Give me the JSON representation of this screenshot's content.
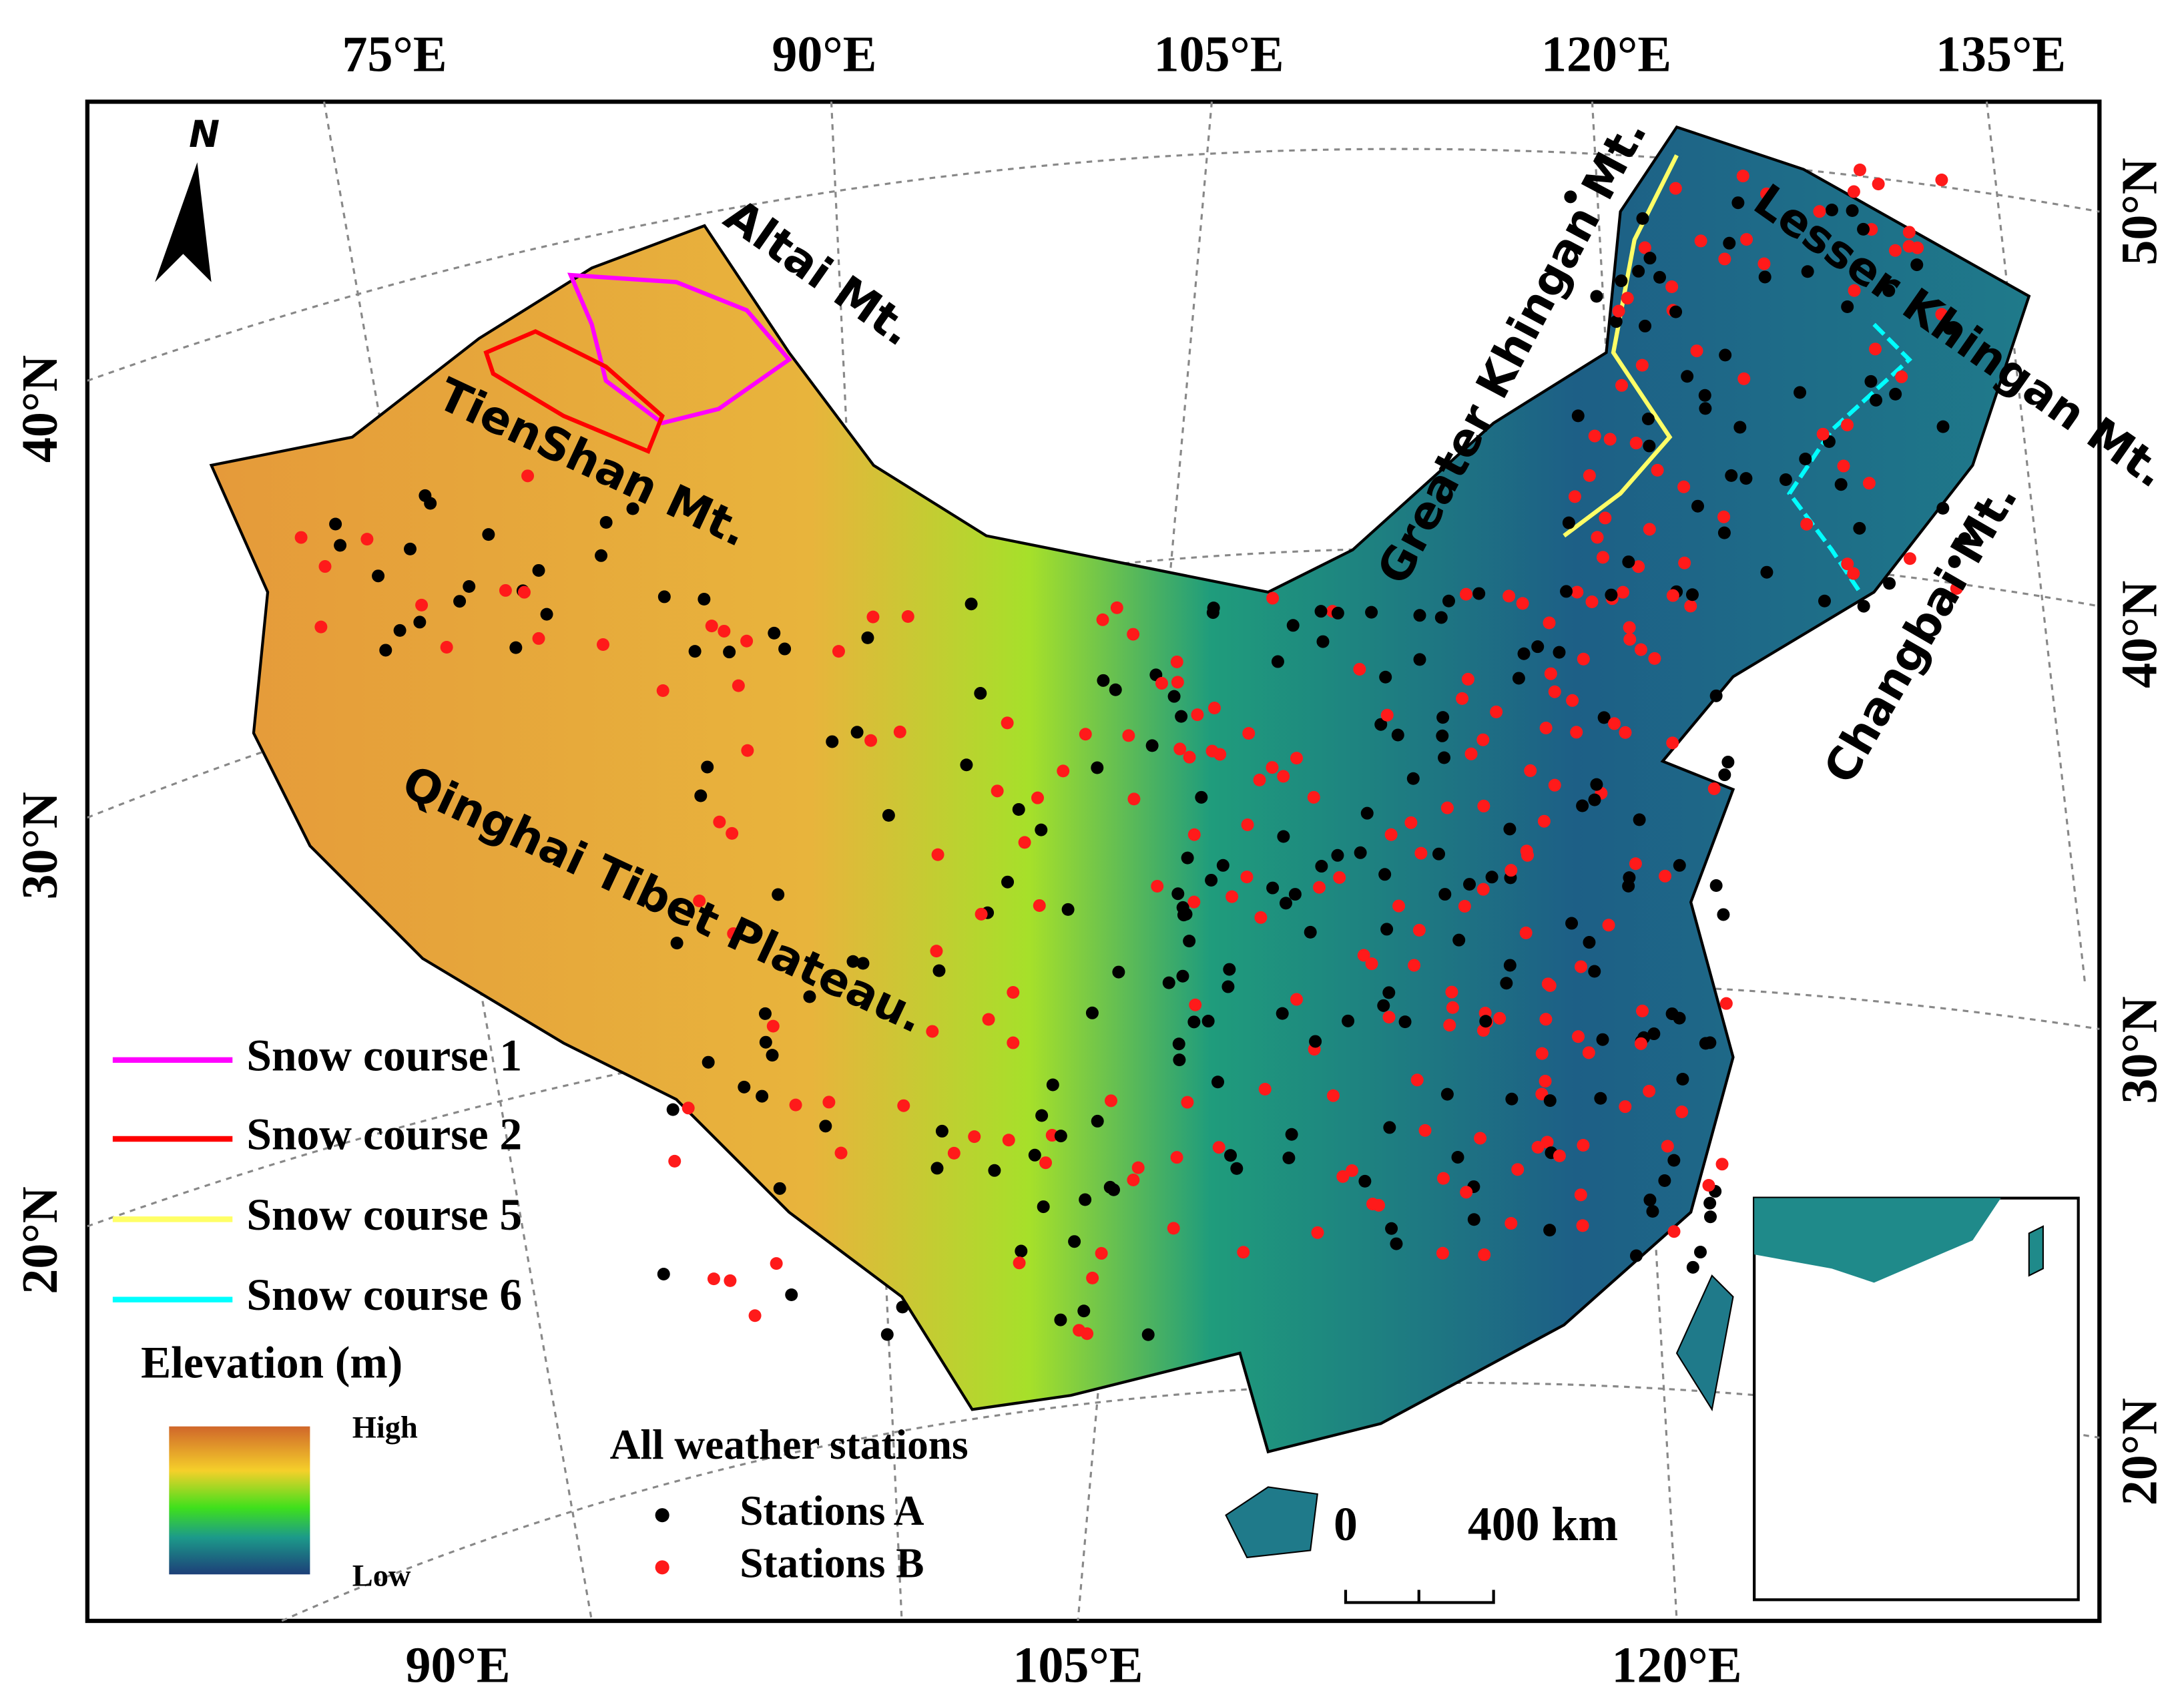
{
  "map": {
    "top_labels": [
      "75°E",
      "90°E",
      "105°E",
      "120°E",
      "135°E"
    ],
    "bottom_labels": [
      "90°E",
      "105°E",
      "120°E"
    ],
    "left_labels": [
      "40°N",
      "30°N",
      "20°N"
    ],
    "right_labels": [
      "50°N",
      "40°N",
      "30°N",
      "20°N"
    ],
    "north": "N",
    "region_labels": [
      "Altai Mt.",
      "TienShan Mt.",
      "Greater Khingan Mt.",
      "Lesser Khingan Mt.",
      "Changbai Mt.",
      "Qinghai Tibet Plateau."
    ],
    "snow_courses": [
      {
        "name": "Snow course 1",
        "color": "#ff00ff"
      },
      {
        "name": "Snow course 2",
        "color": "#ff0000"
      },
      {
        "name": "Snow course 5",
        "color": "#ffff66"
      },
      {
        "name": "Snow course 6",
        "color": "#00ffff"
      }
    ],
    "elevation": {
      "title": "Elevation (m)",
      "high": "High",
      "low": "Low"
    },
    "stations": {
      "title": "All weather stations",
      "items": [
        {
          "name": "Stations A",
          "color": "#000000"
        },
        {
          "name": "Stations B",
          "color": "#ff1a1a"
        }
      ]
    },
    "scale_bar": {
      "zero": "0",
      "distance": "400 km"
    }
  }
}
